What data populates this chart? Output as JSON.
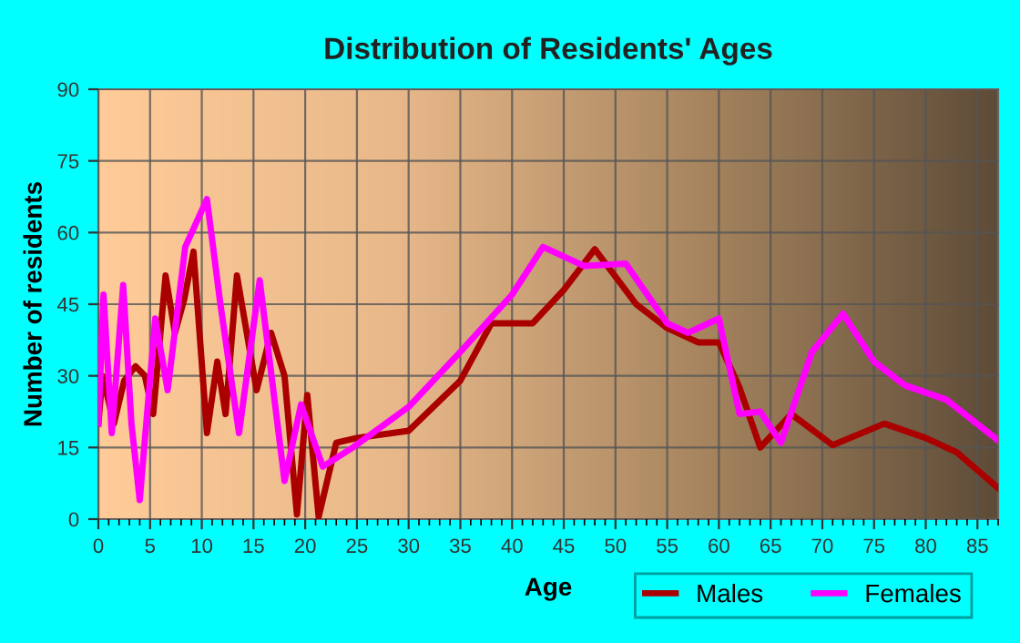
{
  "chart_data": {
    "type": "line",
    "title": "Distribution of Residents' Ages",
    "xlabel": "Age",
    "ylabel": "Number of residents",
    "xlim": [
      0,
      87
    ],
    "xticks": [
      0,
      5,
      10,
      15,
      20,
      25,
      30,
      35,
      40,
      45,
      50,
      55,
      60,
      65,
      70,
      75,
      80,
      85
    ],
    "ylim": [
      0,
      90
    ],
    "yticks": [
      0,
      15,
      30,
      45,
      60,
      75,
      90
    ],
    "grid": true,
    "legend": "bottom right",
    "marker": "none",
    "line_style": "solid",
    "series": [
      {
        "name": "Males",
        "color": "#aa0000",
        "x": [
          0,
          0.4,
          1.5,
          2.5,
          3.6,
          4.5,
          5.3,
          6.5,
          7.4,
          8.3,
          9.2,
          10.5,
          11.5,
          12.3,
          13.4,
          15.3,
          16.7,
          18,
          19.2,
          20.2,
          21.3,
          23,
          25,
          30,
          35,
          38,
          42,
          45,
          48,
          52,
          55,
          58,
          60,
          62,
          64,
          67,
          71,
          76,
          80,
          83,
          87
        ],
        "values": [
          20,
          30,
          20,
          29,
          32,
          30,
          22,
          51,
          39,
          46,
          56,
          18,
          33,
          22,
          51,
          27,
          39,
          30,
          1,
          26,
          0.5,
          16,
          17,
          18.5,
          29,
          41,
          41,
          48,
          56.5,
          45,
          40,
          37,
          37,
          27.5,
          15,
          22,
          15.5,
          20,
          17,
          14,
          6.5
        ]
      },
      {
        "name": "Females",
        "color": "#ff00ff",
        "x": [
          0,
          0.5,
          1.3,
          2.4,
          3.2,
          4,
          5.5,
          6.7,
          8.4,
          10.5,
          11.8,
          13.6,
          15.6,
          18,
          19.6,
          21.7,
          24.6,
          30,
          35,
          40,
          43,
          47,
          51,
          55,
          57,
          60,
          62,
          64,
          66,
          69,
          72,
          75,
          78,
          82,
          87
        ],
        "values": [
          20,
          47,
          18,
          49,
          20,
          4,
          42,
          27,
          57,
          67,
          45,
          18,
          50,
          8,
          24,
          11,
          15,
          23.5,
          35,
          47,
          57,
          53,
          53.5,
          41,
          39,
          42,
          22,
          22.5,
          16,
          35,
          43,
          33,
          28,
          25,
          16.5
        ]
      }
    ]
  }
}
